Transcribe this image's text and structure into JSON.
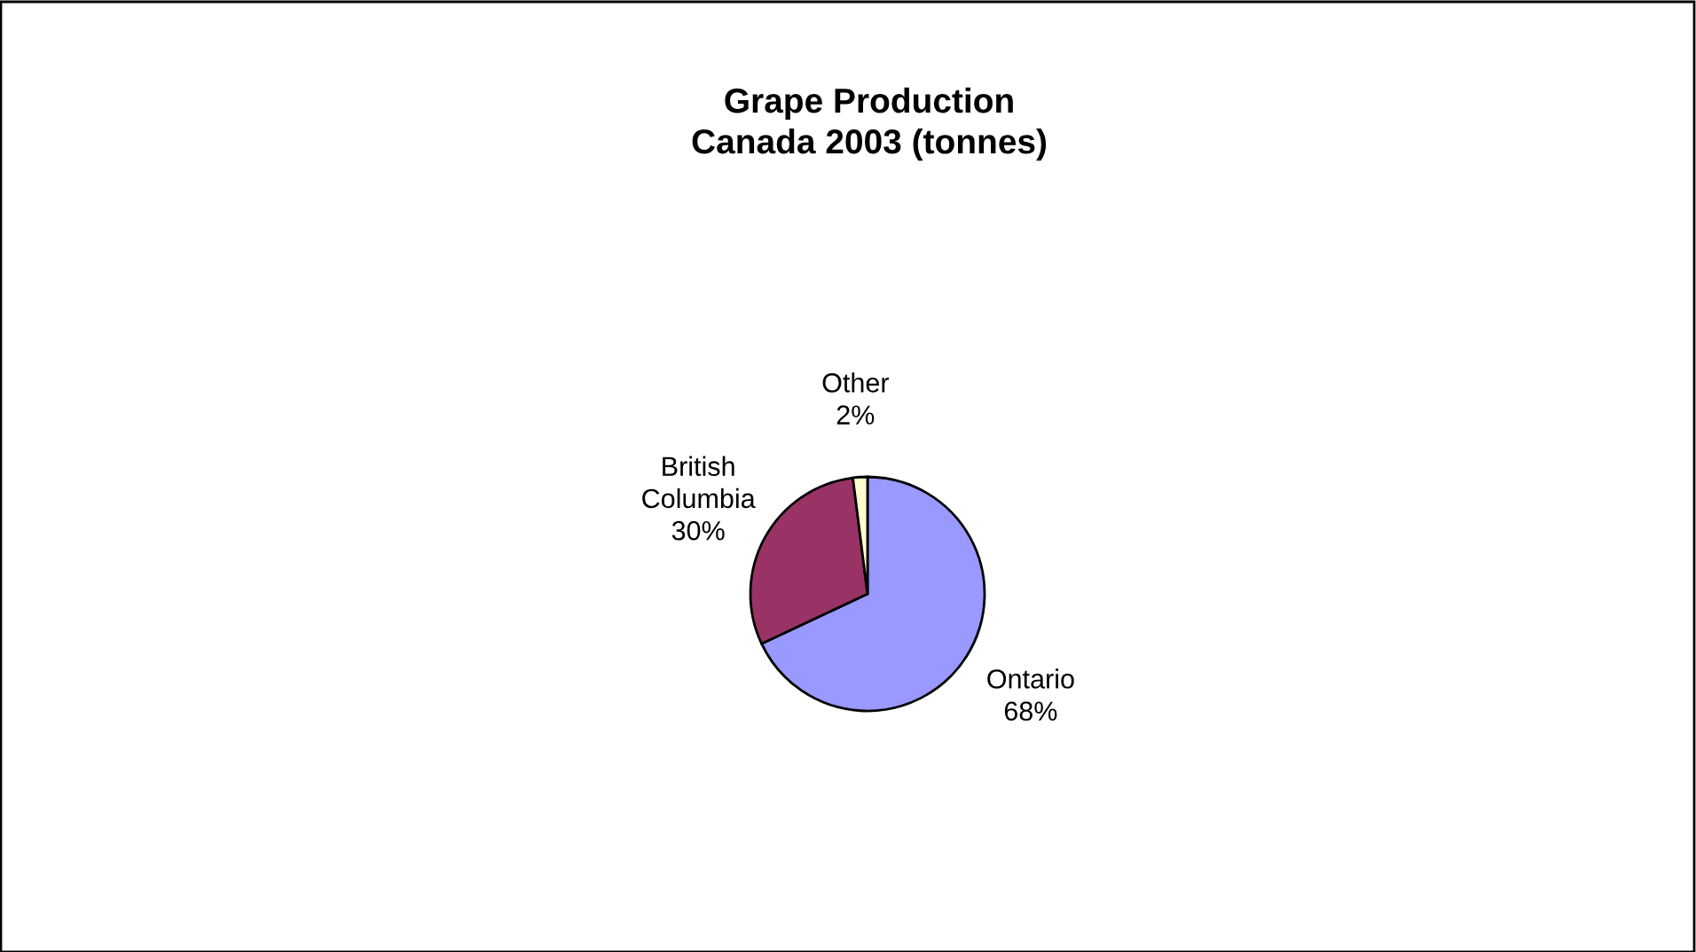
{
  "chart_data": {
    "type": "pie",
    "title": "Grape Production\nCanada 2003 (tonnes)",
    "categories": [
      "Ontario",
      "British Columbia",
      "Other"
    ],
    "values": [
      68,
      30,
      2
    ],
    "value_labels": [
      "68%",
      "30%",
      "2%"
    ],
    "colors": [
      "#9999ff",
      "#993366",
      "#ffffcc"
    ]
  }
}
